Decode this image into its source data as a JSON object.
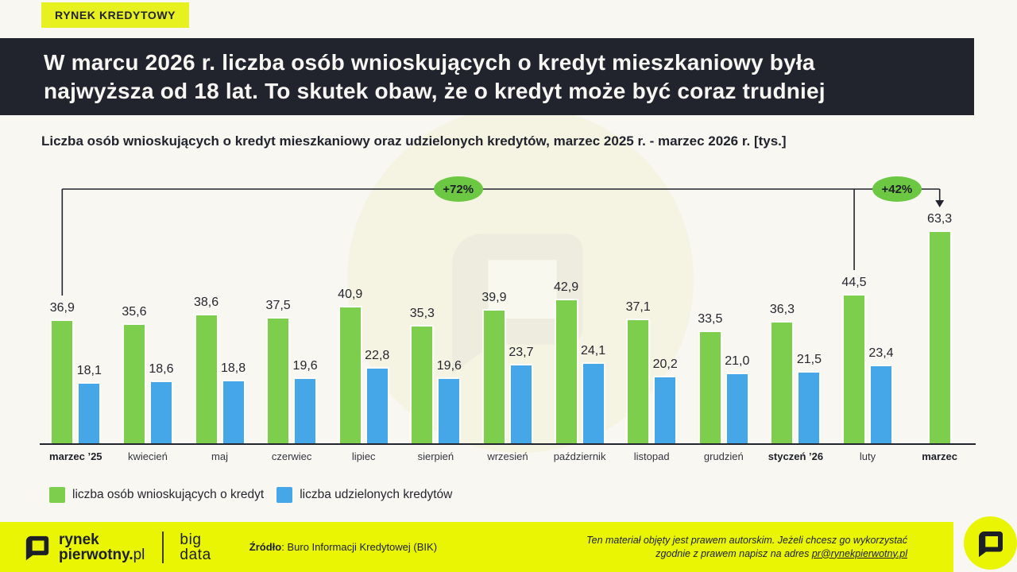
{
  "badge": {
    "label": "RYNEK KREDYTOWY"
  },
  "header": {
    "title_line1": "W marcu 2026 r. liczba osób wnioskujących o kredyt mieszkaniowy była",
    "title_line2": "najwyższa od 18 lat. To skutek obaw, że o kredyt może być coraz trudniej"
  },
  "subtitle": "Liczba osób wnioskujących o kredyt mieszkaniowy oraz udzielonych kredytów, marzec 2025 r. - marzec 2026 r. [tys.]",
  "chart_data": {
    "type": "bar",
    "title": "Liczba osób wnioskujących o kredyt mieszkaniowy oraz udzielonych kredytów, marzec 2025 r. - marzec 2026 r. [tys.]",
    "unit": "tys.",
    "decimal_separator": ",",
    "categories": [
      "marzec ’25",
      "kwiecień",
      "maj",
      "czerwiec",
      "lipiec",
      "sierpień",
      "wrzesień",
      "październik",
      "listopad",
      "grudzień",
      "styczeń ’26",
      "luty",
      "marzec"
    ],
    "emphasized_categories": [
      "marzec ’25",
      "styczeń ’26",
      "marzec"
    ],
    "series": [
      {
        "name": "liczba osób wnioskujących o kredyt",
        "color": "#7CCE4C",
        "values": [
          36.9,
          35.6,
          38.6,
          37.5,
          40.9,
          35.3,
          39.9,
          42.9,
          37.1,
          33.5,
          36.3,
          44.5,
          63.3
        ]
      },
      {
        "name": "liczba udzielonych kredytów",
        "color": "#45A7E8",
        "values": [
          18.1,
          18.6,
          18.8,
          19.6,
          22.8,
          19.6,
          23.7,
          24.1,
          20.2,
          21.0,
          21.5,
          23.4,
          null
        ]
      }
    ],
    "annotations": [
      {
        "label": "+72%",
        "from_category": "marzec ’25",
        "to_category": "marzec"
      },
      {
        "label": "+42%",
        "from_category": "luty",
        "to_category": "marzec"
      }
    ],
    "ylim": [
      0,
      65
    ],
    "grid": false,
    "legend_position": "bottom-left"
  },
  "footer": {
    "brand_line1": "rynek",
    "brand_line2_bold": "pierwotny.",
    "brand_line2_light": "pl",
    "bigdata_line1": "big",
    "bigdata_line2": "data",
    "source_label": "Źródło",
    "source_rest": ": Buro Informacji Kredytowej (BIK)",
    "copyright_line1": "Ten materiał objęty jest prawem autorskim. Jeżeli chcesz go wykorzystać",
    "copyright_line2_prefix": "zgodnie z prawem napisz na adres ",
    "copyright_link": "pr@rynekpierwotny.pl"
  },
  "colors": {
    "background": "#F8F7F2",
    "header_bg": "#22242D",
    "badge_yellow": "#E7F11F",
    "footer_yellow": "#E9F502",
    "growth_badge_green": "#6CC742",
    "bar_green": "#7CCE4C",
    "bar_blue": "#45A7E8",
    "text_dark": "#25262E"
  }
}
